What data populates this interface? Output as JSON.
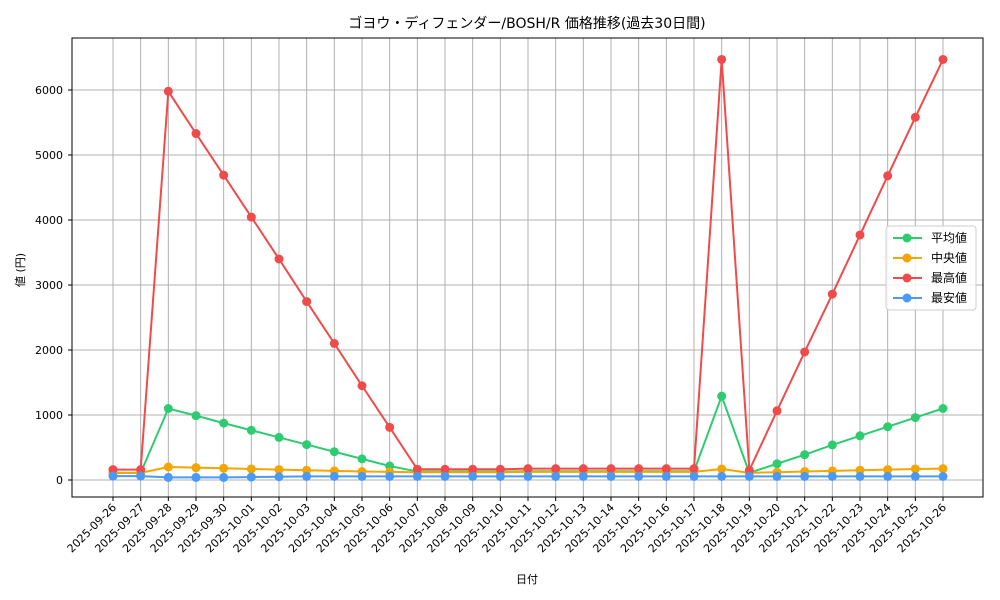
{
  "chart_data": {
    "type": "line",
    "title": "ゴヨウ・ディフェンダー/BOSH/R 価格推移(過去30日間)",
    "xlabel": "日付",
    "ylabel": "値 (円)",
    "ylim": [
      -260,
      6780
    ],
    "yticks": [
      0,
      1000,
      2000,
      3000,
      4000,
      5000,
      6000
    ],
    "grid": true,
    "legend_position": "center right",
    "categories": [
      "2025-09-26",
      "2025-09-27",
      "2025-09-28",
      "2025-09-29",
      "2025-09-30",
      "2025-10-01",
      "2025-10-02",
      "2025-10-03",
      "2025-10-04",
      "2025-10-05",
      "2025-10-06",
      "2025-10-07",
      "2025-10-08",
      "2025-10-09",
      "2025-10-10",
      "2025-10-11",
      "2025-10-12",
      "2025-10-13",
      "2025-10-14",
      "2025-10-15",
      "2025-10-16",
      "2025-10-17",
      "2025-10-18",
      "2025-10-19",
      "2025-10-20",
      "2025-10-21",
      "2025-10-22",
      "2025-10-23",
      "2025-10-24",
      "2025-10-25",
      "2025-10-26"
    ],
    "series": [
      {
        "name": "平均値",
        "color": "#2ecc71",
        "values": [
          110,
          110,
          1100,
          990,
          875,
          765,
          655,
          545,
          435,
          325,
          215,
          130,
          130,
          130,
          130,
          135,
          135,
          135,
          135,
          135,
          135,
          135,
          1290,
          110,
          250,
          390,
          540,
          680,
          820,
          960,
          1100
        ]
      },
      {
        "name": "中央値",
        "color": "#f5a500",
        "values": [
          110,
          110,
          200,
          190,
          180,
          170,
          160,
          150,
          140,
          130,
          125,
          120,
          120,
          120,
          120,
          125,
          125,
          125,
          125,
          125,
          125,
          125,
          170,
          110,
          120,
          130,
          140,
          150,
          160,
          170,
          175
        ]
      },
      {
        "name": "最高値",
        "color": "#ef4b4b",
        "values": [
          160,
          160,
          5980,
          5330,
          4690,
          4045,
          3400,
          2745,
          2100,
          1450,
          810,
          165,
          165,
          165,
          165,
          175,
          175,
          175,
          175,
          175,
          175,
          175,
          6470,
          150,
          1065,
          1970,
          2860,
          3770,
          4680,
          5580,
          6470
        ]
      },
      {
        "name": "最安値",
        "color": "#4a9af5",
        "values": [
          60,
          60,
          40,
          40,
          40,
          45,
          50,
          55,
          55,
          55,
          55,
          55,
          55,
          55,
          55,
          55,
          55,
          55,
          55,
          55,
          55,
          55,
          55,
          55,
          55,
          55,
          55,
          55,
          55,
          55,
          55
        ]
      }
    ]
  }
}
